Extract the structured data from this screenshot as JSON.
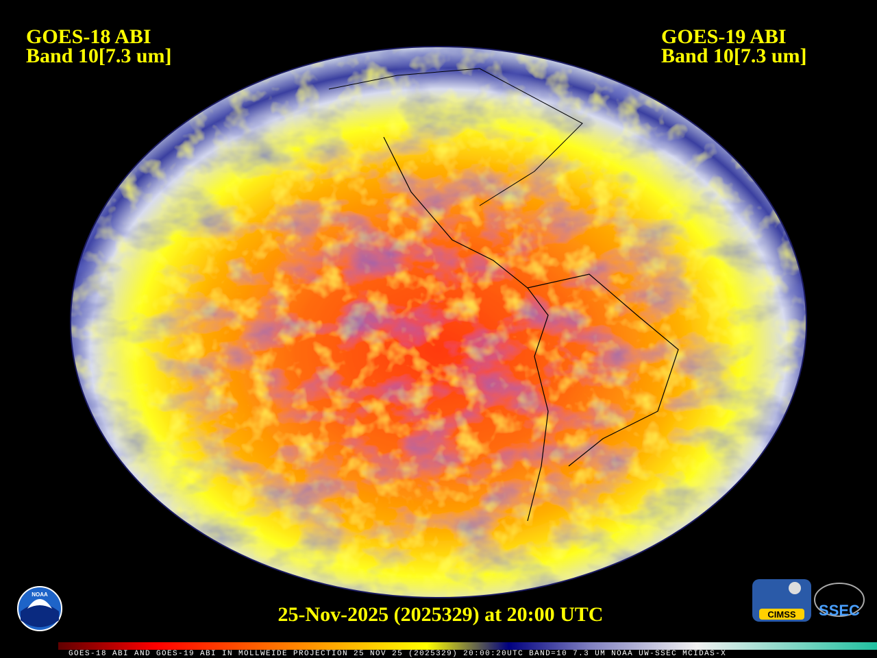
{
  "labels": {
    "left": [
      "GOES-18 ABI",
      "Band 10[7.3 um]"
    ],
    "right": [
      "GOES-19 ABI",
      "Band 10[7.3 um]"
    ],
    "timestamp": "25-Nov-2025 (2025329) at 20:00 UTC",
    "footer": "GOES-18 ABI AND GOES-19 ABI IN MOLLWEIDE PROJECTION 25 NOV 25 (2025329) 20:00:20UTC BAND=10 7.3 UM NOAA UW-SSEC MCIDAS-X"
  },
  "logos": {
    "noaa": "NOAA",
    "cimss": "CIMSS",
    "ssec": "SSEC"
  }
}
